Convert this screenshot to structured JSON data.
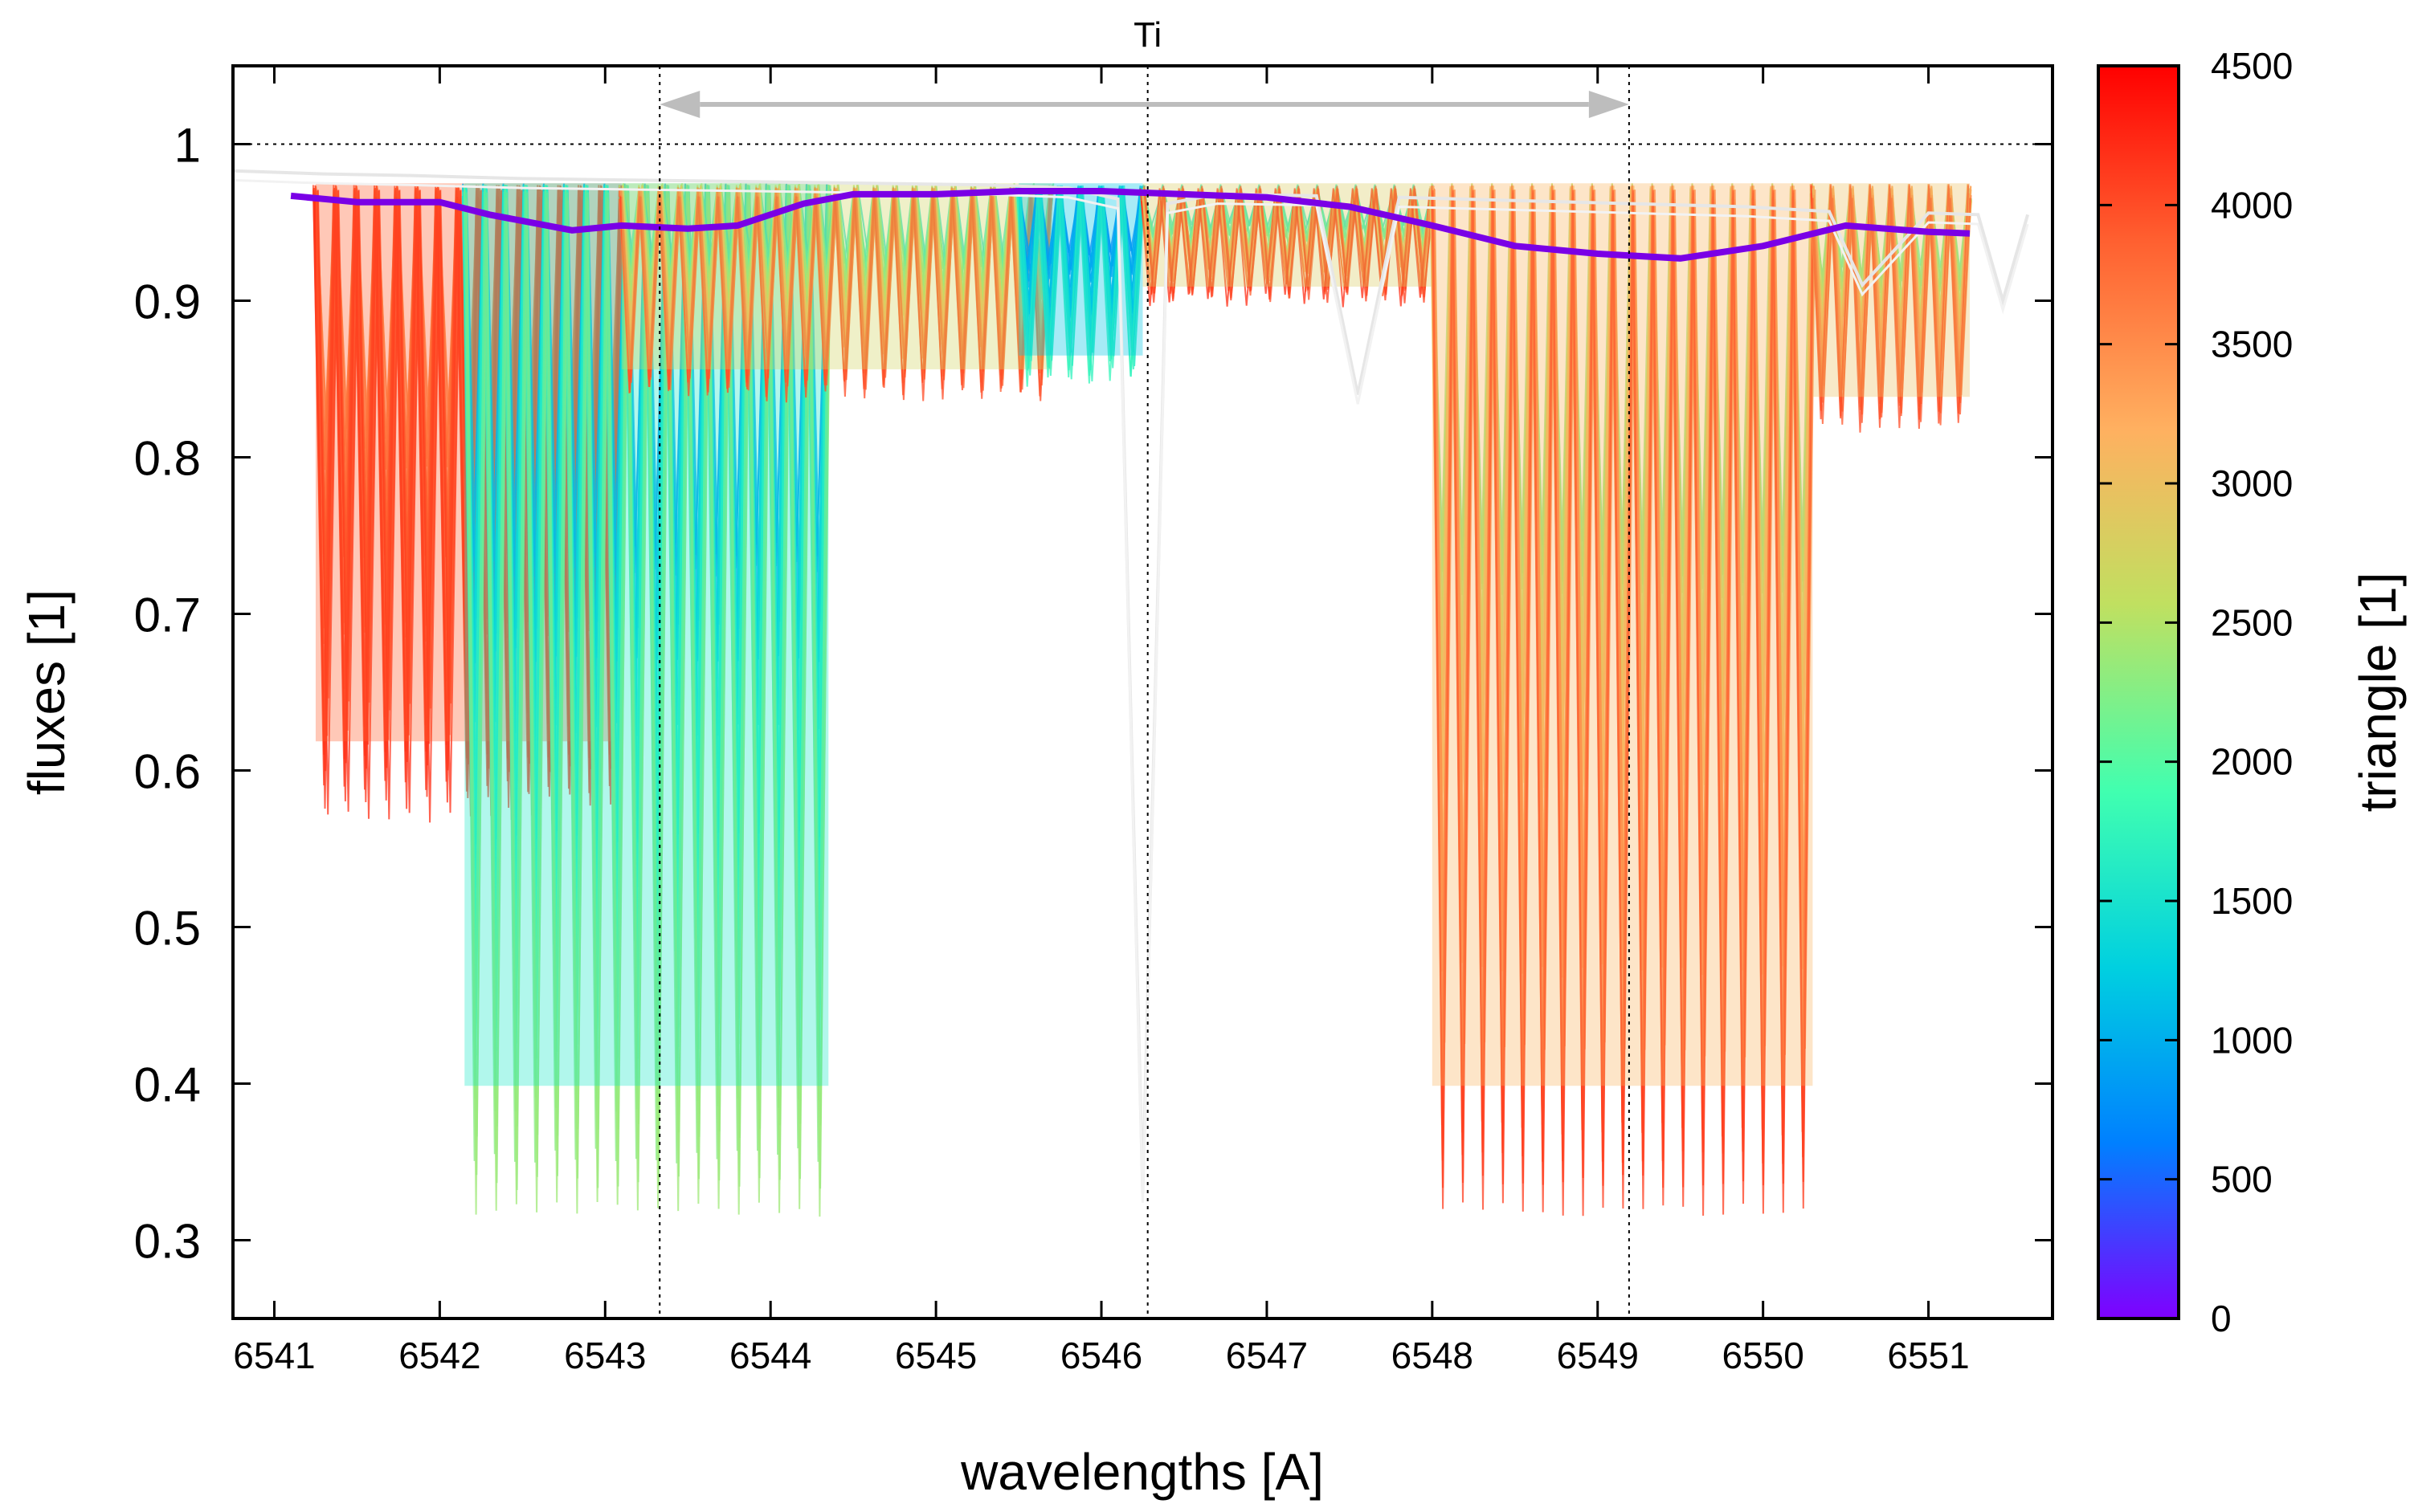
{
  "chart_data": {
    "type": "line",
    "title": "",
    "xlabel": "wavelengths [A]",
    "ylabel": "fluxes [1]",
    "xlim": [
      6540.75,
      6551.75
    ],
    "ylim": [
      0.25,
      1.05
    ],
    "x_ticks": [
      6541,
      6542,
      6543,
      6544,
      6545,
      6546,
      6547,
      6548,
      6549,
      6550,
      6551
    ],
    "y_ticks": [
      0.3,
      0.4,
      0.5,
      0.6,
      0.7,
      0.8,
      0.9,
      1
    ],
    "colorbar": {
      "label": "triangle [1]",
      "range": [
        0,
        4500
      ],
      "ticks": [
        0,
        500,
        1000,
        1500,
        2000,
        2500,
        3000,
        3500,
        4000,
        4500
      ],
      "colormap": "rainbow",
      "colors": [
        "#7f00ff",
        "#0080ff",
        "#00d0e0",
        "#40ffb0",
        "#c0e060",
        "#ffb060",
        "#ff6030",
        "#ff0000"
      ]
    },
    "grid": false,
    "legend": "none",
    "annotations": {
      "element_label": "Ti",
      "element_line_x": 6546.28,
      "range_markers_x": [
        6543.33,
        6549.19
      ],
      "range_arrow": [
        6543.33,
        6549.19
      ],
      "continuum_level": 1.0
    },
    "ensemble_segments": [
      {
        "x_start": 6541.25,
        "x_end": 6543.1,
        "depth_min": 0.57,
        "triangle_min": 3500,
        "triangle_max": 4200
      },
      {
        "x_start": 6542.15,
        "x_end": 6544.35,
        "depth_min": 0.32,
        "triangle_min": 800,
        "triangle_max": 2400
      },
      {
        "x_start": 6543.1,
        "x_end": 6545.7,
        "depth_min": 0.84,
        "triangle_min": 1500,
        "triangle_max": 4000
      },
      {
        "x_start": 6545.5,
        "x_end": 6546.25,
        "depth_min": 0.85,
        "triangle_min": 600,
        "triangle_max": 1800
      },
      {
        "x_start": 6546.25,
        "x_end": 6548.0,
        "depth_min": 0.9,
        "triangle_min": 1500,
        "triangle_max": 4200
      },
      {
        "x_start": 6548.0,
        "x_end": 6550.3,
        "depth_min": 0.32,
        "triangle_min": 2200,
        "triangle_max": 4100
      },
      {
        "x_start": 6550.3,
        "x_end": 6551.25,
        "depth_min": 0.82,
        "triangle_min": 2000,
        "triangle_max": 4000
      }
    ],
    "series": [
      {
        "role": "observed-mean",
        "color": "#7a00e6",
        "x": [
          6541.1,
          6541.5,
          6542.0,
          6542.3,
          6542.8,
          6543.1,
          6543.5,
          6543.8,
          6544.2,
          6544.5,
          6545.0,
          6545.5,
          6546.0,
          6546.5,
          6547.0,
          6547.5,
          6548.0,
          6548.5,
          6549.0,
          6549.5,
          6550.0,
          6550.5,
          6551.0,
          6551.25
        ],
        "values": [
          0.967,
          0.963,
          0.963,
          0.955,
          0.945,
          0.948,
          0.946,
          0.948,
          0.962,
          0.968,
          0.968,
          0.97,
          0.97,
          0.968,
          0.966,
          0.96,
          0.948,
          0.935,
          0.93,
          0.927,
          0.935,
          0.948,
          0.944,
          0.943
        ]
      },
      {
        "role": "reference-spectrum",
        "color": "#e6e6e6",
        "x": [
          6540.75,
          6541.3,
          6541.8,
          6542.5,
          6543.2,
          6543.9,
          6544.6,
          6545.3,
          6545.8,
          6546.1,
          6546.25,
          6546.4,
          6546.7,
          6547.3,
          6547.55,
          6547.8,
          6548.5,
          6549.2,
          6549.9,
          6550.4,
          6550.6,
          6551.0,
          6551.3,
          6551.45,
          6551.6
        ],
        "values": [
          0.983,
          0.981,
          0.98,
          0.978,
          0.977,
          0.976,
          0.975,
          0.974,
          0.972,
          0.965,
          0.33,
          0.962,
          0.968,
          0.967,
          0.84,
          0.966,
          0.964,
          0.962,
          0.96,
          0.957,
          0.91,
          0.956,
          0.955,
          0.9,
          0.955
        ]
      }
    ]
  }
}
